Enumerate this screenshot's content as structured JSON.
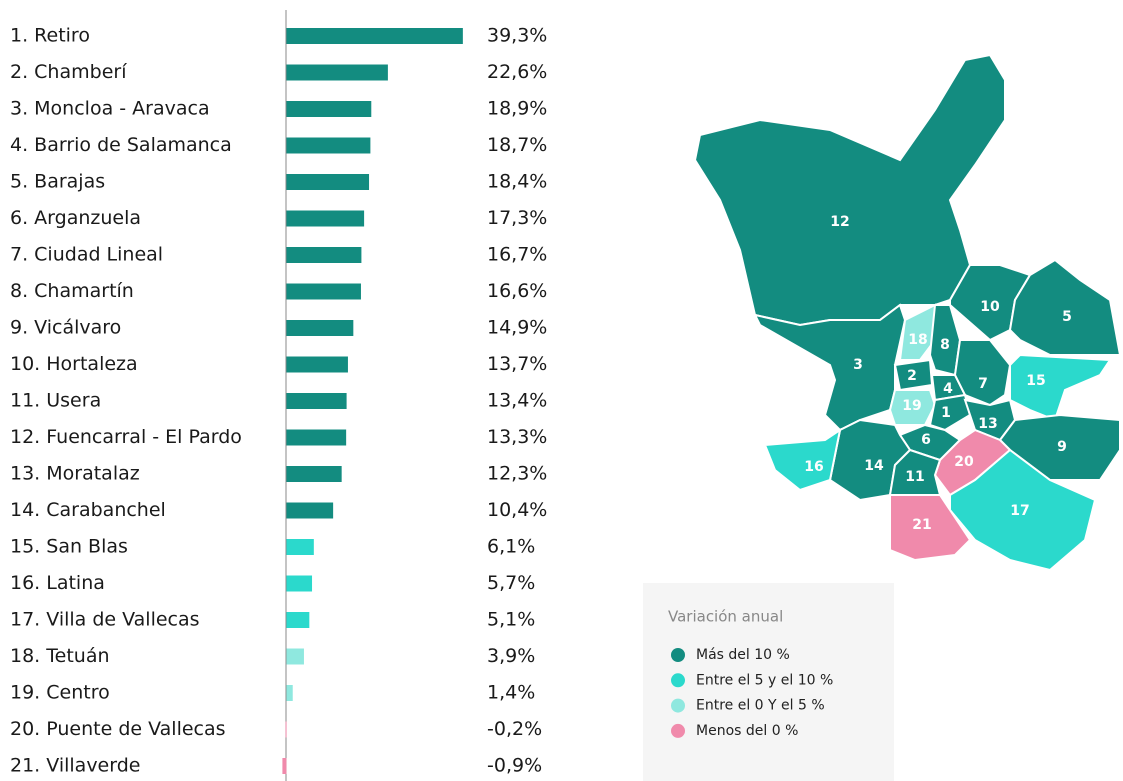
{
  "chart_data": {
    "type": "bar",
    "categories": [
      "1. Retiro",
      "2. Chamberí",
      "3. Moncloa - Aravaca",
      "4. Barrio de Salamanca",
      "5. Barajas",
      "6. Arganzuela",
      "7. Ciudad Lineal",
      "8. Chamartín",
      "9. Vicálvaro",
      "10. Hortaleza",
      "11. Usera",
      "12. Fuencarral - El Pardo",
      "13. Moratalaz",
      "14. Carabanchel",
      "15. San Blas",
      "16. Latina",
      "17. Villa de Vallecas",
      "18. Tetuán",
      "19. Centro",
      "20. Puente de Vallecas",
      "21. Villaverde"
    ],
    "values": [
      39.3,
      22.6,
      18.9,
      18.7,
      18.4,
      17.3,
      16.7,
      16.6,
      14.9,
      13.7,
      13.4,
      13.3,
      12.3,
      10.4,
      6.1,
      5.7,
      5.1,
      3.9,
      1.4,
      -0.2,
      -0.9
    ],
    "value_labels": [
      "39,3%",
      "22,6%",
      "18,9%",
      "18,7%",
      "18,4%",
      "17,3%",
      "16,7%",
      "16,6%",
      "14,9%",
      "13,7%",
      "13,4%",
      "13,3%",
      "12,3%",
      "10,4%",
      "6,1%",
      "5,7%",
      "5,1%",
      "3,9%",
      "1,4%",
      "-0,2%",
      "-0,9%"
    ],
    "colors": [
      "#138c80",
      "#138c80",
      "#138c80",
      "#138c80",
      "#138c80",
      "#138c80",
      "#138c80",
      "#138c80",
      "#138c80",
      "#138c80",
      "#138c80",
      "#138c80",
      "#138c80",
      "#138c80",
      "#2bd9cc",
      "#2bd9cc",
      "#2bd9cc",
      "#8fe8df",
      "#8fe8df",
      "#f08aab",
      "#f08aab"
    ],
    "xlim": [
      -5,
      40
    ],
    "map": {
      "districts": [
        {
          "label": "12",
          "color": "#138c80"
        },
        {
          "label": "10",
          "color": "#138c80"
        },
        {
          "label": "5",
          "color": "#138c80"
        },
        {
          "label": "3",
          "color": "#138c80"
        },
        {
          "label": "18",
          "color": "#8fe8df"
        },
        {
          "label": "8",
          "color": "#138c80"
        },
        {
          "label": "2",
          "color": "#138c80"
        },
        {
          "label": "4",
          "color": "#138c80"
        },
        {
          "label": "7",
          "color": "#138c80"
        },
        {
          "label": "15",
          "color": "#2bd9cc"
        },
        {
          "label": "19",
          "color": "#8fe8df"
        },
        {
          "label": "1",
          "color": "#138c80"
        },
        {
          "label": "13",
          "color": "#138c80"
        },
        {
          "label": "6",
          "color": "#138c80"
        },
        {
          "label": "9",
          "color": "#138c80"
        },
        {
          "label": "20",
          "color": "#f08aab"
        },
        {
          "label": "14",
          "color": "#138c80"
        },
        {
          "label": "16",
          "color": "#2bd9cc"
        },
        {
          "label": "11",
          "color": "#138c80"
        },
        {
          "label": "17",
          "color": "#2bd9cc"
        },
        {
          "label": "21",
          "color": "#f08aab"
        }
      ]
    },
    "legend": {
      "title": "Variación anual",
      "items": [
        {
          "name": "Más del 10 %",
          "color": "#138c80"
        },
        {
          "name": "Entre el 5 y el 10 %",
          "color": "#2bd9cc"
        },
        {
          "name": "Entre el 0 Y el 5 %",
          "color": "#8fe8df"
        },
        {
          "name": "Menos del 0 %",
          "color": "#f08aab"
        }
      ]
    }
  }
}
